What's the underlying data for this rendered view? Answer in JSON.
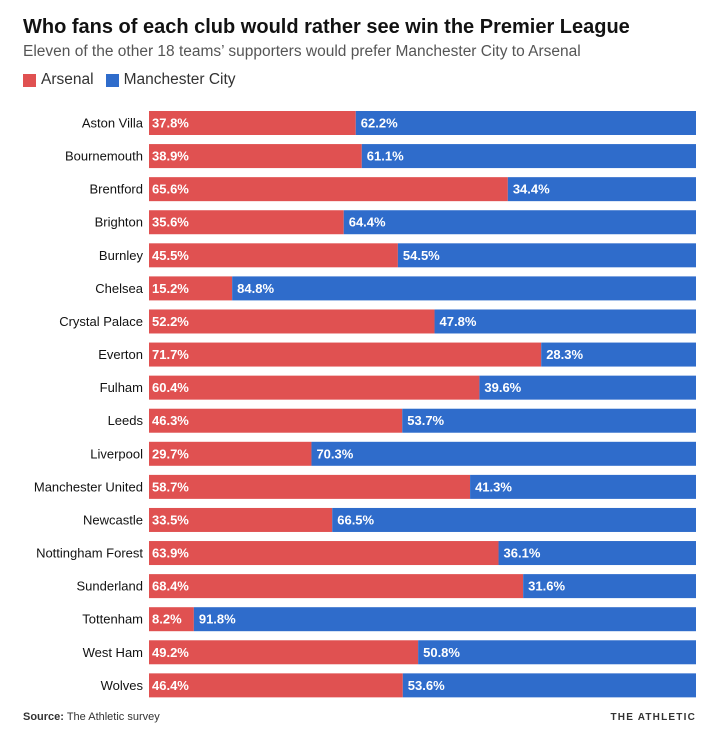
{
  "chart_data": {
    "type": "bar",
    "orientation": "horizontal",
    "stacked": true,
    "title": "Who fans of each club would rather see win the Premier League",
    "subtitle": "Eleven of the other 18 teams’ supporters would prefer Manchester City to Arsenal",
    "categories": [
      "Aston Villa",
      "Bournemouth",
      "Brentford",
      "Brighton",
      "Burnley",
      "Chelsea",
      "Crystal Palace",
      "Everton",
      "Fulham",
      "Leeds",
      "Liverpool",
      "Manchester United",
      "Newcastle",
      "Nottingham Forest",
      "Sunderland",
      "Tottenham",
      "West Ham",
      "Wolves"
    ],
    "series": [
      {
        "name": "Arsenal",
        "color": "#e05151",
        "values": [
          37.8,
          38.9,
          65.6,
          35.6,
          45.5,
          15.2,
          52.2,
          71.7,
          60.4,
          46.3,
          29.7,
          58.7,
          33.5,
          63.9,
          68.4,
          8.2,
          49.2,
          46.4
        ]
      },
      {
        "name": "Manchester City",
        "color": "#2f6ccb",
        "values": [
          62.2,
          61.1,
          34.4,
          64.4,
          54.5,
          84.8,
          47.8,
          28.3,
          39.6,
          53.7,
          70.3,
          41.3,
          66.5,
          36.1,
          31.6,
          91.8,
          50.8,
          53.6
        ]
      }
    ],
    "labels": {
      "Arsenal": [
        "37.8%",
        "38.9%",
        "65.6%",
        "35.6%",
        "45.5%",
        "15.2%",
        "52.2%",
        "71.7%",
        "60.4%",
        "46.3%",
        "29.7%",
        "58.7%",
        "33.5%",
        "63.9%",
        "68.4%",
        "8.2%",
        "49.2%",
        "46.4%"
      ],
      "Manchester City": [
        "62.2%",
        "61.1%",
        "34.4%",
        "64.4%",
        "54.5%",
        "84.8%",
        "47.8%",
        "28.3%",
        "39.6%",
        "53.7%",
        "70.3%",
        "41.3%",
        "66.5%",
        "36.1%",
        "31.6%",
        "91.8%",
        "50.8%",
        "53.6%"
      ]
    },
    "xlim": [
      0,
      100
    ],
    "grid": false,
    "legend_placement": "top-left"
  },
  "footer": {
    "source_label": "Source:",
    "source_text": " The Athletic survey",
    "brand": "THE ATHLETIC"
  }
}
